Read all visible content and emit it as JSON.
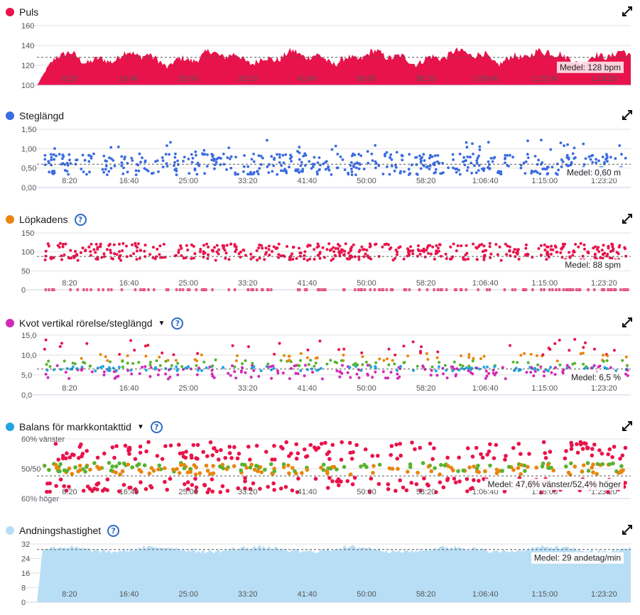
{
  "x_ticks": [
    "8:20",
    "16:40",
    "25:00",
    "33:20",
    "41:40",
    "50:00",
    "58:20",
    "1:06:40",
    "1:15:00",
    "1:23:20"
  ],
  "colors": {
    "red": "#e8134a",
    "blue": "#3a6be0",
    "orange": "#e8860d",
    "magenta": "#d12bb5",
    "cyan": "#21a5e0",
    "lightblue": "#b8def5",
    "green": "#58b22f",
    "help": "#2f6bc4"
  },
  "panels": [
    {
      "id": "puls",
      "title": "Puls",
      "dot_color": "#e8134a",
      "has_help": false,
      "has_caret": false,
      "avg_label": "Medel: 128 bpm",
      "avg_value": 128,
      "chart_data": {
        "type": "area",
        "y_ticks": [
          "160",
          "140",
          "120",
          "100"
        ],
        "ylim": [
          100,
          160
        ],
        "series": [
          {
            "color": "#e8134a"
          }
        ]
      }
    },
    {
      "id": "steglangd",
      "title": "Steglängd",
      "dot_color": "#3a6be0",
      "has_help": false,
      "has_caret": false,
      "avg_label": "Medel: 0,60 m",
      "avg_value": 0.6,
      "chart_data": {
        "type": "scatter",
        "y_ticks": [
          "1,50",
          "1,00",
          "0,50",
          "0,00"
        ],
        "ylim": [
          0,
          1.5
        ],
        "series": [
          {
            "color": "#3a6be0"
          }
        ]
      }
    },
    {
      "id": "lopkadens",
      "title": "Löpkadens",
      "dot_color": "#e8860d",
      "has_help": true,
      "has_caret": false,
      "avg_label": "Medel: 88 spm",
      "avg_value": 88,
      "chart_data": {
        "type": "scatter",
        "y_ticks": [
          "150",
          "100",
          "50",
          "0"
        ],
        "ylim": [
          0,
          150
        ],
        "series": [
          {
            "color": "#e8134a"
          }
        ]
      }
    },
    {
      "id": "kvot",
      "title": "Kvot vertikal rörelse/steglängd",
      "dot_color": "#d12bb5",
      "has_help": true,
      "has_caret": true,
      "avg_label": "Medel: 6,5 %",
      "avg_value": 6.5,
      "chart_data": {
        "type": "scatter",
        "y_ticks": [
          "15,0",
          "10,0",
          "5,0",
          "0,0"
        ],
        "ylim": [
          0,
          15
        ],
        "series": [
          {
            "color": "#d12bb5"
          },
          {
            "color": "#21a5e0"
          },
          {
            "color": "#58b22f"
          },
          {
            "color": "#e8860d"
          },
          {
            "color": "#e8134a"
          }
        ]
      }
    },
    {
      "id": "balans",
      "title": "Balans för markkontakttid",
      "dot_color": "#21a5e0",
      "has_help": true,
      "has_caret": true,
      "avg_label": "Medel: 47,6% vänster/52,4% höger",
      "avg_value": 47.6,
      "chart_data": {
        "type": "scatter",
        "y_ticks": [
          "60% vänster",
          "50/50",
          "60% höger"
        ],
        "ylim": [
          40,
          60
        ],
        "series": [
          {
            "color": "#e8134a"
          },
          {
            "color": "#e8860d"
          },
          {
            "color": "#58b22f"
          }
        ]
      }
    },
    {
      "id": "andning",
      "title": "Andningshastighet",
      "dot_color": "#b8def5",
      "has_help": true,
      "has_caret": false,
      "avg_label": "Medel: 29 andetag/min",
      "avg_value": 29,
      "chart_data": {
        "type": "area",
        "y_ticks": [
          "32",
          "24",
          "16",
          "8",
          "0"
        ],
        "ylim": [
          0,
          32
        ],
        "series": [
          {
            "color": "#b8def5"
          }
        ]
      }
    }
  ]
}
